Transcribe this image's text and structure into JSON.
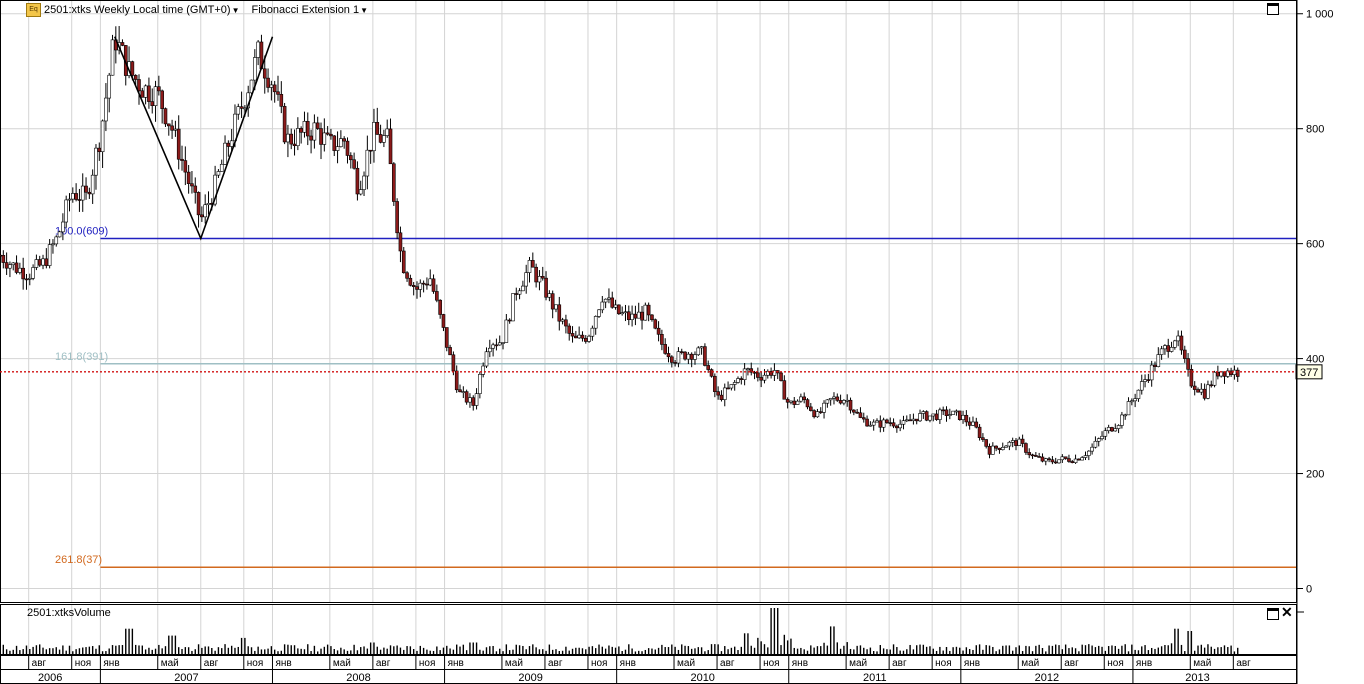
{
  "header": {
    "badge": "Eq",
    "instrument": "2501:xtks Weekly Local time (GMT+0)",
    "study": "Fibonacci Extension 1"
  },
  "volume_panel": {
    "title": "2501:xtksVolume"
  },
  "colors": {
    "up": "#ffffff",
    "down": "#8b1a1a",
    "wick": "#000000",
    "grid": "#d4d4d4",
    "fib100": "#2020c0",
    "fib161": "#9fbfc4",
    "fib261": "#d2691e",
    "last_price": "#d01010",
    "trendline": "#000000"
  },
  "chart_data": {
    "type": "candlestick",
    "title": "2501:xtks Weekly Local time (GMT+0)",
    "y_axis": {
      "ticks": [
        "0",
        "200",
        "400",
        "600",
        "800",
        "1 000"
      ],
      "range": [
        -20,
        1010
      ],
      "position": "right"
    },
    "x_axis": {
      "months": [
        "авг",
        "ноя",
        "янв",
        "май",
        "авг",
        "ноя",
        "янв",
        "май",
        "авг",
        "ноя",
        "янв",
        "май",
        "авг",
        "ноя",
        "янв",
        "май",
        "авг",
        "ноя",
        "янв",
        "май",
        "авг",
        "ноя",
        "янв",
        "май",
        "авг",
        "ноя",
        "янв",
        "май",
        "авг"
      ],
      "years": [
        "2006",
        "2007",
        "2008",
        "2009",
        "2010",
        "2011",
        "2012",
        "2013"
      ]
    },
    "x_range": [
      "2006-06",
      "2013-10"
    ],
    "grid": true,
    "price_path": [
      [
        "2006-06",
        580
      ],
      [
        "2006-07",
        560
      ],
      [
        "2006-08",
        548
      ],
      [
        "2006-09",
        565
      ],
      [
        "2006-10",
        610
      ],
      [
        "2006-11",
        690
      ],
      [
        "2006-12",
        680
      ],
      [
        "2007-01",
        790
      ],
      [
        "2007-02",
        960
      ],
      [
        "2007-03",
        900
      ],
      [
        "2007-04",
        870
      ],
      [
        "2007-05",
        860
      ],
      [
        "2007-06",
        800
      ],
      [
        "2007-07",
        720
      ],
      [
        "2007-08",
        640
      ],
      [
        "2007-09",
        700
      ],
      [
        "2007-10",
        780
      ],
      [
        "2007-11",
        850
      ],
      [
        "2007-12",
        930
      ],
      [
        "2008-01",
        880
      ],
      [
        "2008-02",
        780
      ],
      [
        "2008-03",
        790
      ],
      [
        "2008-04",
        800
      ],
      [
        "2008-05",
        770
      ],
      [
        "2008-06",
        780
      ],
      [
        "2008-07",
        700
      ],
      [
        "2008-08",
        790
      ],
      [
        "2008-09",
        780
      ],
      [
        "2008-10",
        570
      ],
      [
        "2008-11",
        520
      ],
      [
        "2008-12",
        540
      ],
      [
        "2009-01",
        440
      ],
      [
        "2009-02",
        340
      ],
      [
        "2009-03",
        320
      ],
      [
        "2009-04",
        430
      ],
      [
        "2009-05",
        430
      ],
      [
        "2009-06",
        520
      ],
      [
        "2009-07",
        560
      ],
      [
        "2009-08",
        520
      ],
      [
        "2009-09",
        470
      ],
      [
        "2009-10",
        430
      ],
      [
        "2009-11",
        440
      ],
      [
        "2009-12",
        510
      ],
      [
        "2010-01",
        480
      ],
      [
        "2010-02",
        470
      ],
      [
        "2010-03",
        480
      ],
      [
        "2010-04",
        430
      ],
      [
        "2010-05",
        400
      ],
      [
        "2010-06",
        410
      ],
      [
        "2010-07",
        410
      ],
      [
        "2010-08",
        330
      ],
      [
        "2010-09",
        350
      ],
      [
        "2010-10",
        380
      ],
      [
        "2010-11",
        370
      ],
      [
        "2010-12",
        380
      ],
      [
        "2011-01",
        320
      ],
      [
        "2011-02",
        330
      ],
      [
        "2011-03",
        300
      ],
      [
        "2011-04",
        330
      ],
      [
        "2011-05",
        330
      ],
      [
        "2011-06",
        295
      ],
      [
        "2011-07",
        285
      ],
      [
        "2011-08",
        290
      ],
      [
        "2011-09",
        285
      ],
      [
        "2011-10",
        300
      ],
      [
        "2011-11",
        300
      ],
      [
        "2011-12",
        305
      ],
      [
        "2012-01",
        300
      ],
      [
        "2012-02",
        280
      ],
      [
        "2012-03",
        240
      ],
      [
        "2012-04",
        250
      ],
      [
        "2012-05",
        255
      ],
      [
        "2012-06",
        230
      ],
      [
        "2012-07",
        220
      ],
      [
        "2012-08",
        225
      ],
      [
        "2012-09",
        225
      ],
      [
        "2012-10",
        240
      ],
      [
        "2012-11",
        270
      ],
      [
        "2012-12",
        290
      ],
      [
        "2013-01",
        330
      ],
      [
        "2013-02",
        370
      ],
      [
        "2013-03",
        410
      ],
      [
        "2013-04",
        440
      ],
      [
        "2013-05",
        360
      ],
      [
        "2013-06",
        340
      ],
      [
        "2013-07",
        380
      ],
      [
        "2013-08",
        377
      ]
    ],
    "fibonacci": [
      {
        "label": "100.0(609)",
        "value": 609,
        "from": "2007-01"
      },
      {
        "label": "161.8(391)",
        "value": 391,
        "from": "2007-01"
      },
      {
        "label": "261.8(37)",
        "value": 37,
        "from": "2007-01"
      }
    ],
    "trendline": [
      [
        "2007-02",
        960
      ],
      [
        "2007-08",
        609
      ],
      [
        "2008-01",
        960
      ]
    ],
    "last_price": {
      "value": 377,
      "label": "377"
    },
    "volume": {
      "y_range": [
        0,
        100
      ],
      "spikes": [
        [
          "2007-03",
          55
        ],
        [
          "2007-06",
          40
        ],
        [
          "2007-11",
          35
        ],
        [
          "2008-08",
          25
        ],
        [
          "2009-03",
          25
        ],
        [
          "2010-10",
          45
        ],
        [
          "2010-12",
          100
        ],
        [
          "2011-04",
          60
        ],
        [
          "2013-04",
          55
        ],
        [
          "2013-05",
          50
        ]
      ],
      "baseline": 18
    }
  }
}
